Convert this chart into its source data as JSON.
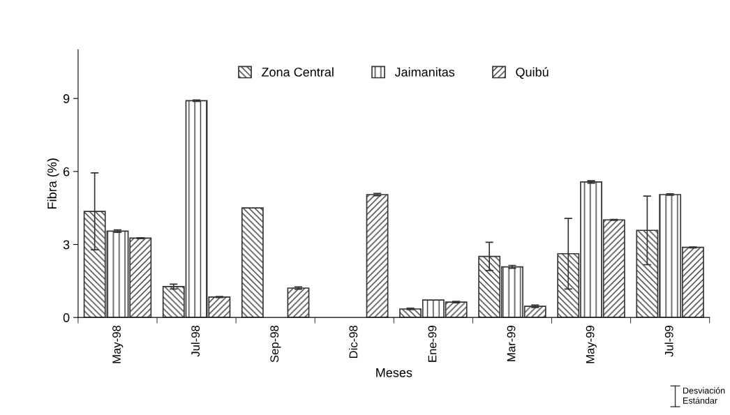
{
  "chart_data": {
    "type": "bar",
    "xlabel": "Meses",
    "ylabel": "Fibra (%)",
    "categories": [
      "May-98",
      "Jul-98",
      "Sep-98",
      "Dic-98",
      "Ene-99",
      "Mar-99",
      "May-99",
      "Jul-99"
    ],
    "series": [
      {
        "name": "Zona Central",
        "color": "#333333",
        "values": [
          4.36,
          1.27,
          4.5,
          null,
          0.35,
          2.51,
          2.62,
          3.58
        ],
        "errors": [
          1.58,
          0.1,
          null,
          null,
          0.03,
          0.58,
          1.45,
          1.41
        ]
      },
      {
        "name": "Jaimanitas",
        "color": "#333333",
        "values": [
          3.55,
          8.91,
          null,
          null,
          0.72,
          2.08,
          5.57,
          5.05
        ],
        "errors": [
          0.05,
          0.03,
          null,
          null,
          null,
          0.06,
          0.05,
          0.03
        ]
      },
      {
        "name": "Quibú",
        "color": "#333333",
        "values": [
          3.26,
          0.84,
          1.21,
          5.05,
          0.63,
          0.46,
          4.01,
          2.88
        ],
        "errors": [
          0.02,
          0.02,
          0.05,
          0.05,
          0.03,
          0.05,
          0.02,
          0.02
        ]
      }
    ],
    "ylim": [
      0,
      11
    ],
    "yticks": [
      0,
      3,
      6,
      9
    ],
    "grid": false,
    "legend": "top",
    "annotations": [
      "Desviación\nEstándar"
    ]
  }
}
